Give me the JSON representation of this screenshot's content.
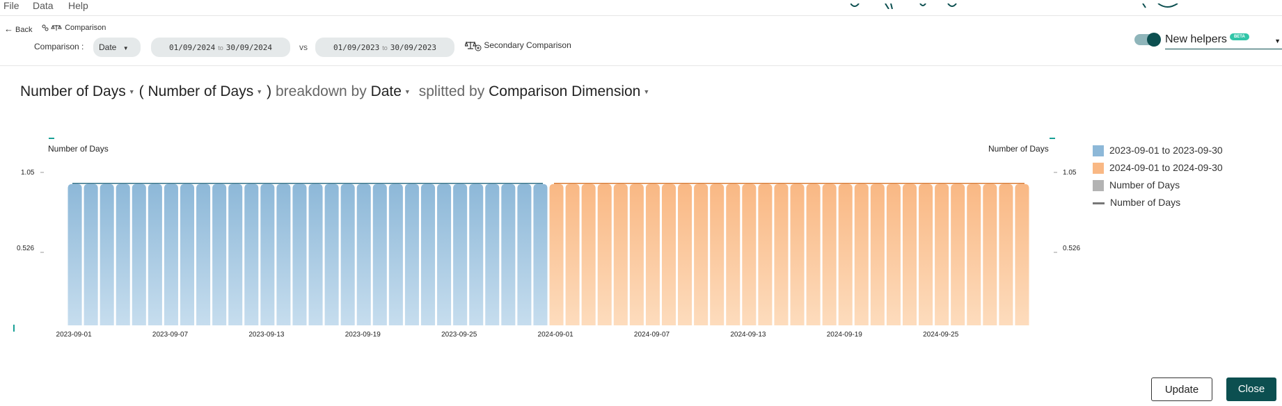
{
  "menu": {
    "file": "File",
    "data": "Data",
    "help": "Help"
  },
  "toolbar": {
    "back_label": "Back",
    "comparison_title": "Comparison",
    "comparison_label": "Comparison :",
    "dimension_value": "Date",
    "range1_start": "01/09/2024",
    "range1_end": "30/09/2024",
    "range_sep": "to",
    "vs_label": "vs",
    "range2_start": "01/09/2023",
    "range2_end": "30/09/2023",
    "secondary_comparison_label": "Secondary Comparison",
    "new_helpers_label": "New helpers",
    "beta_badge": "BETA",
    "new_helpers_enabled": true
  },
  "heading": {
    "metric": "Number of Days",
    "open_paren": "(",
    "secondary_metric": "Number of Days",
    "close_paren": ")",
    "breakdown_by": "breakdown by",
    "breakdown_dim": "Date",
    "splitted_by": "splitted by",
    "split_dim": "Comparison Dimension"
  },
  "chart_data": {
    "type": "bar",
    "left_axis_title": "Number of Days",
    "right_axis_title": "Number of Days",
    "y_ticks": [
      "1.05",
      "0.526"
    ],
    "ylim": [
      0,
      1.05
    ],
    "x_tick_labels": [
      "2023-09-01",
      "2023-09-07",
      "2023-09-13",
      "2023-09-19",
      "2023-09-25",
      "2024-09-01",
      "2024-09-07",
      "2024-09-13",
      "2024-09-19",
      "2024-09-25"
    ],
    "series": [
      {
        "name": "2023-09-01 to 2023-09-30",
        "color": "#8db8d8",
        "start_date": "2023-09-01",
        "count": 30,
        "value": 1
      },
      {
        "name": "2024-09-01 to 2024-09-30",
        "color": "#f9b884",
        "start_date": "2024-09-01",
        "count": 30,
        "value": 1
      }
    ],
    "legend": [
      {
        "label": "2023-09-01 to 2023-09-30",
        "kind": "swatch",
        "color": "#8db8d8"
      },
      {
        "label": "2024-09-01 to 2024-09-30",
        "kind": "swatch",
        "color": "#f9b884"
      },
      {
        "label": "Number of Days",
        "kind": "swatch",
        "color": "#b3b3b3"
      },
      {
        "label": "Number of Days",
        "kind": "line",
        "color": "#777777"
      }
    ],
    "legend_position": "right"
  },
  "buttons": {
    "update": "Update",
    "close": "Close"
  },
  "icons": {
    "back": "arrow-left-icon",
    "comparison": "scale-icon",
    "secondary": "scale-plus-icon"
  }
}
